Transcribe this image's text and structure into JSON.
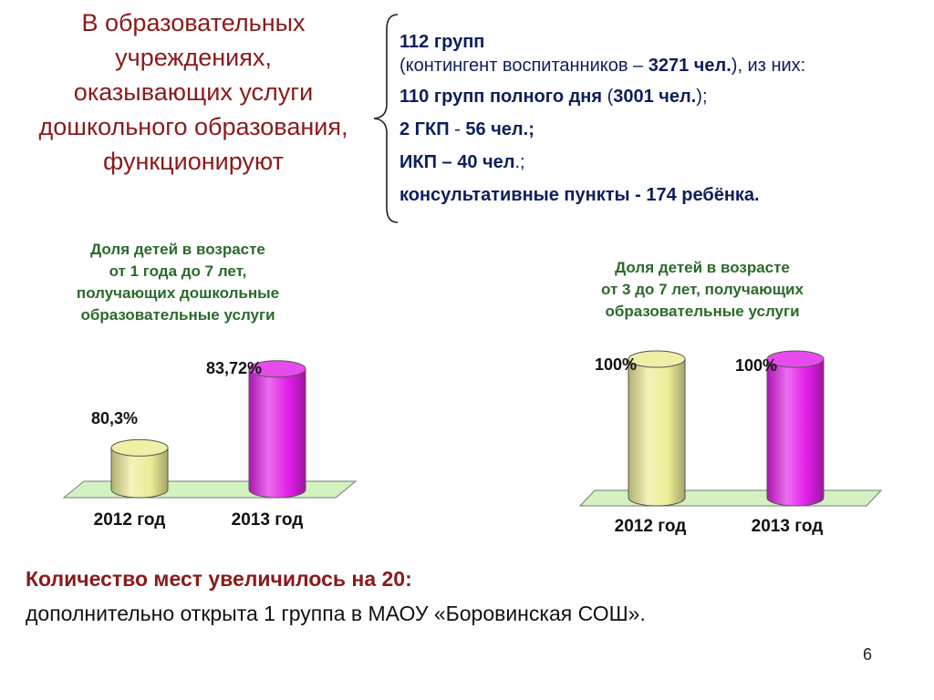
{
  "heading": [
    "В образовательных",
    "учреждениях,",
    "оказывающих услуги",
    "дошкольного образования,",
    "функционируют"
  ],
  "info": {
    "line1": "112 групп",
    "line2_pre": "(контингент воспитанников – ",
    "line2_bold": "3271 чел.",
    "line2_post": "), из них:",
    "line3_bold1": "110 групп полного дня",
    "line3_mid1": " (",
    "line3_bold2": "3001 чел.",
    "line3_post": ");",
    "line4_bold1": "2 ГКП",
    "line4_mid": " - ",
    "line4_bold2": "56 чел.;",
    "line5_bold": "ИКП – 40 чел",
    "line5_post": ".;",
    "line6": "консультативные пункты - 174 ребёнка."
  },
  "bottom": {
    "line1": "Количество мест увеличилось на 20:",
    "line2": "дополнительно открыта 1 группа в МАОУ «Боровинская СОШ»."
  },
  "page_number": "6",
  "colors": {
    "heading": "#8b1a1a",
    "info_text": "#0b1f5c",
    "chart_title": "#2a6a2a",
    "bar_2012": "#ecec96",
    "bar_2013": "#e21ee8",
    "floor": "#d3f2bf"
  },
  "chart_data": [
    {
      "type": "bar",
      "title": [
        "Доля детей в возрасте",
        "от 1 года до 7 лет,",
        "получающих дошкольные",
        "образовательные услуги"
      ],
      "categories": [
        "2012 год",
        "2013 год"
      ],
      "values": [
        80.3,
        83.72
      ],
      "value_labels": [
        "80,3%",
        "83,72%"
      ],
      "ylim": [
        78.5,
        84.5
      ],
      "grid": false,
      "legend": "none"
    },
    {
      "type": "bar",
      "title": [
        "Доля детей в возрасте",
        "от 3 до 7 лет, получающих",
        "образовательные услуги"
      ],
      "categories": [
        "2012 год",
        "2013 год"
      ],
      "values": [
        100,
        100
      ],
      "value_labels": [
        "100%",
        "100%"
      ],
      "ylim": [
        0,
        100
      ],
      "grid": false,
      "legend": "none"
    }
  ]
}
